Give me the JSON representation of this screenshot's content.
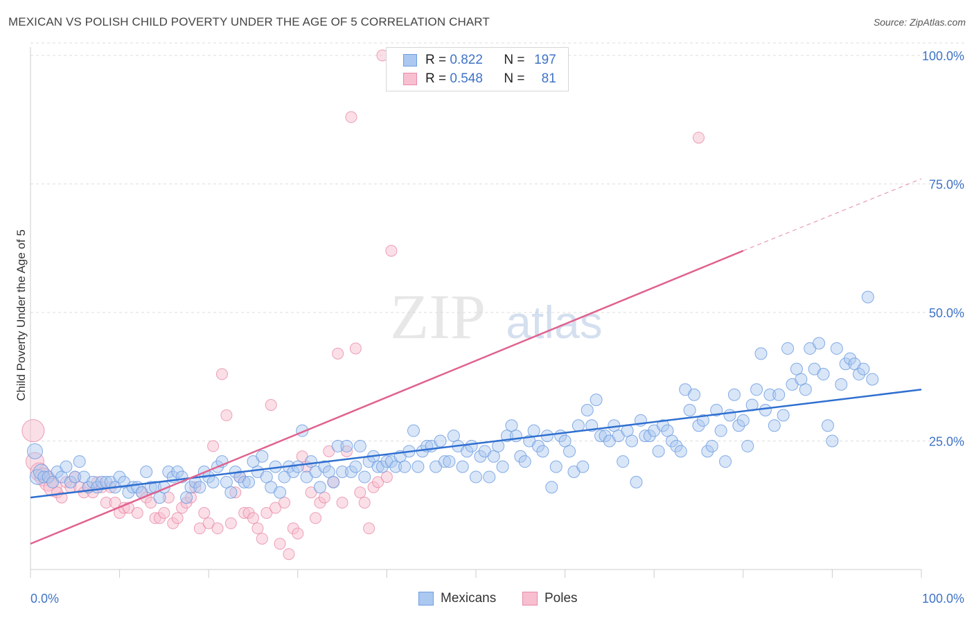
{
  "title": "MEXICAN VS POLISH CHILD POVERTY UNDER THE AGE OF 5 CORRELATION CHART",
  "source": "Source: ZipAtlas.com",
  "watermark": {
    "zip": "ZIP",
    "atlas": "atlas"
  },
  "legend": {
    "rows": [
      {
        "r_label": "R =",
        "r_value": "0.822",
        "n_label": "N =",
        "n_value": "197",
        "color": "#aac8f0",
        "border": "#6f9ee0"
      },
      {
        "r_label": "R =",
        "r_value": "0.548",
        "n_label": "N =",
        "n_value": "81",
        "color": "#f7bfd0",
        "border": "#e88aa8"
      }
    ]
  },
  "bottom_legend": {
    "mexicans": "Mexicans",
    "poles": "Poles"
  },
  "chart_data": {
    "type": "scatter",
    "title": "MEXICAN VS POLISH CHILD POVERTY UNDER THE AGE OF 5 CORRELATION CHART",
    "xlabel": "",
    "ylabel": "Child Poverty Under the Age of 5",
    "xlim": [
      0,
      100
    ],
    "ylim": [
      0,
      100
    ],
    "x_ticks": [
      "0.0%",
      "100.0%"
    ],
    "y_ticks": [
      "25.0%",
      "50.0%",
      "75.0%",
      "100.0%"
    ],
    "y_tick_values": [
      25,
      50,
      75,
      100
    ],
    "grid": true,
    "legend_position": "top-center",
    "series": [
      {
        "name": "Mexicans",
        "color": "#6f9ee0",
        "fill": "#aac8f0",
        "trend": {
          "x": [
            0,
            100
          ],
          "y": [
            14,
            35
          ]
        },
        "points": [
          [
            0.5,
            23
          ],
          [
            0.8,
            18
          ],
          [
            1.2,
            19
          ],
          [
            1.5,
            18
          ],
          [
            2,
            18
          ],
          [
            2.5,
            17
          ],
          [
            3,
            19
          ],
          [
            3.5,
            18
          ],
          [
            4,
            20
          ],
          [
            4.5,
            17
          ],
          [
            5,
            18
          ],
          [
            5.5,
            21
          ],
          [
            6,
            18
          ],
          [
            6.5,
            16
          ],
          [
            7,
            17
          ],
          [
            7.5,
            16
          ],
          [
            8,
            17
          ],
          [
            8.5,
            17
          ],
          [
            9,
            17
          ],
          [
            9.5,
            16
          ],
          [
            10,
            18
          ],
          [
            10.5,
            17
          ],
          [
            11,
            15
          ],
          [
            11.5,
            16
          ],
          [
            12,
            16
          ],
          [
            12.5,
            15
          ],
          [
            13,
            19
          ],
          [
            13.5,
            16
          ],
          [
            14,
            16
          ],
          [
            14.5,
            14
          ],
          [
            15,
            16
          ],
          [
            15.5,
            19
          ],
          [
            16,
            18
          ],
          [
            16.5,
            19
          ],
          [
            17,
            18
          ],
          [
            17.5,
            14
          ],
          [
            18,
            16
          ],
          [
            18.5,
            17
          ],
          [
            19,
            16
          ],
          [
            19.5,
            19
          ],
          [
            20,
            18
          ],
          [
            20.5,
            17
          ],
          [
            21,
            20
          ],
          [
            21.5,
            21
          ],
          [
            22,
            17
          ],
          [
            22.5,
            15
          ],
          [
            23,
            19
          ],
          [
            23.5,
            18
          ],
          [
            24,
            17
          ],
          [
            24.5,
            17
          ],
          [
            25,
            21
          ],
          [
            25.5,
            19
          ],
          [
            26,
            22
          ],
          [
            26.5,
            18
          ],
          [
            27,
            16
          ],
          [
            27.5,
            20
          ],
          [
            28,
            15
          ],
          [
            28.5,
            18
          ],
          [
            29,
            20
          ],
          [
            29.5,
            19
          ],
          [
            30,
            20
          ],
          [
            30.5,
            27
          ],
          [
            31,
            18
          ],
          [
            31.5,
            21
          ],
          [
            32,
            19
          ],
          [
            32.5,
            16
          ],
          [
            33,
            20
          ],
          [
            33.5,
            19
          ],
          [
            34,
            17
          ],
          [
            34.5,
            24
          ],
          [
            35,
            19
          ],
          [
            35.5,
            24
          ],
          [
            36,
            19
          ],
          [
            36.5,
            20
          ],
          [
            37,
            24
          ],
          [
            37.5,
            18
          ],
          [
            38,
            21
          ],
          [
            38.5,
            22
          ],
          [
            39,
            20
          ],
          [
            39.5,
            20
          ],
          [
            40,
            21
          ],
          [
            40.5,
            21
          ],
          [
            41,
            20
          ],
          [
            41.5,
            22
          ],
          [
            42,
            20
          ],
          [
            42.5,
            23
          ],
          [
            43,
            27
          ],
          [
            43.5,
            20
          ],
          [
            44,
            23
          ],
          [
            44.5,
            24
          ],
          [
            45,
            24
          ],
          [
            45.5,
            20
          ],
          [
            46,
            25
          ],
          [
            46.5,
            21
          ],
          [
            47,
            21
          ],
          [
            47.5,
            26
          ],
          [
            48,
            24
          ],
          [
            48.5,
            20
          ],
          [
            49,
            23
          ],
          [
            49.5,
            24
          ],
          [
            50,
            18
          ],
          [
            50.5,
            22
          ],
          [
            51,
            23
          ],
          [
            51.5,
            18
          ],
          [
            52,
            22
          ],
          [
            52.5,
            24
          ],
          [
            53,
            20
          ],
          [
            53.5,
            26
          ],
          [
            54,
            28
          ],
          [
            54.5,
            26
          ],
          [
            55,
            22
          ],
          [
            55.5,
            21
          ],
          [
            56,
            25
          ],
          [
            56.5,
            27
          ],
          [
            57,
            24
          ],
          [
            57.5,
            23
          ],
          [
            58,
            26
          ],
          [
            58.5,
            16
          ],
          [
            59,
            20
          ],
          [
            59.5,
            26
          ],
          [
            60,
            25
          ],
          [
            60.5,
            23
          ],
          [
            61,
            19
          ],
          [
            61.5,
            28
          ],
          [
            62,
            20
          ],
          [
            62.5,
            31
          ],
          [
            63,
            28
          ],
          [
            63.5,
            33
          ],
          [
            64,
            26
          ],
          [
            64.5,
            26
          ],
          [
            65,
            25
          ],
          [
            65.5,
            28
          ],
          [
            66,
            26
          ],
          [
            66.5,
            21
          ],
          [
            67,
            27
          ],
          [
            67.5,
            25
          ],
          [
            68,
            17
          ],
          [
            68.5,
            29
          ],
          [
            69,
            26
          ],
          [
            69.5,
            26
          ],
          [
            70,
            27
          ],
          [
            70.5,
            23
          ],
          [
            71,
            28
          ],
          [
            71.5,
            27
          ],
          [
            72,
            25
          ],
          [
            72.5,
            24
          ],
          [
            73,
            23
          ],
          [
            73.5,
            35
          ],
          [
            74,
            31
          ],
          [
            74.5,
            34
          ],
          [
            75,
            28
          ],
          [
            75.5,
            29
          ],
          [
            76,
            23
          ],
          [
            76.5,
            24
          ],
          [
            77,
            31
          ],
          [
            77.5,
            27
          ],
          [
            78,
            21
          ],
          [
            78.5,
            30
          ],
          [
            79,
            34
          ],
          [
            79.5,
            28
          ],
          [
            80,
            29
          ],
          [
            80.5,
            24
          ],
          [
            81,
            32
          ],
          [
            81.5,
            35
          ],
          [
            82,
            42
          ],
          [
            82.5,
            31
          ],
          [
            83,
            34
          ],
          [
            83.5,
            28
          ],
          [
            84,
            34
          ],
          [
            84.5,
            30
          ],
          [
            85,
            43
          ],
          [
            85.5,
            36
          ],
          [
            86,
            39
          ],
          [
            86.5,
            37
          ],
          [
            87,
            35
          ],
          [
            87.5,
            43
          ],
          [
            88,
            39
          ],
          [
            88.5,
            44
          ],
          [
            89,
            38
          ],
          [
            89.5,
            28
          ],
          [
            90,
            25
          ],
          [
            90.5,
            43
          ],
          [
            91,
            36
          ],
          [
            91.5,
            40
          ],
          [
            92,
            41
          ],
          [
            92.5,
            40
          ],
          [
            93,
            38
          ],
          [
            93.5,
            39
          ],
          [
            94,
            53
          ],
          [
            94.5,
            37
          ]
        ]
      },
      {
        "name": "Poles",
        "color": "#e88aa8",
        "fill": "#f7bfd0",
        "trend": {
          "x": [
            0,
            80
          ],
          "y": [
            5,
            62
          ]
        },
        "trend_dashed": {
          "x": [
            80,
            100
          ],
          "y": [
            62,
            76
          ]
        },
        "points": [
          [
            0.3,
            27
          ],
          [
            0.5,
            21
          ],
          [
            1,
            19
          ],
          [
            1.5,
            18
          ],
          [
            2,
            17
          ],
          [
            2.5,
            16
          ],
          [
            3,
            15
          ],
          [
            3.5,
            14
          ],
          [
            4,
            17
          ],
          [
            4.5,
            16
          ],
          [
            5,
            18
          ],
          [
            5.5,
            16
          ],
          [
            6,
            15
          ],
          [
            6.5,
            16
          ],
          [
            7,
            15
          ],
          [
            7.5,
            17
          ],
          [
            8,
            16
          ],
          [
            8.5,
            13
          ],
          [
            9,
            16
          ],
          [
            9.5,
            13
          ],
          [
            10,
            11
          ],
          [
            10.5,
            12
          ],
          [
            11,
            12
          ],
          [
            12,
            11
          ],
          [
            12.5,
            15
          ],
          [
            13,
            14
          ],
          [
            13.5,
            13
          ],
          [
            14,
            10
          ],
          [
            14.5,
            10
          ],
          [
            15,
            11
          ],
          [
            15.5,
            14
          ],
          [
            16,
            9
          ],
          [
            16.5,
            10
          ],
          [
            17,
            12
          ],
          [
            17.5,
            13
          ],
          [
            18,
            14
          ],
          [
            18.5,
            16
          ],
          [
            19,
            8
          ],
          [
            19.5,
            11
          ],
          [
            20,
            9
          ],
          [
            20.5,
            24
          ],
          [
            21,
            8
          ],
          [
            21.5,
            38
          ],
          [
            22,
            30
          ],
          [
            22.5,
            9
          ],
          [
            23,
            15
          ],
          [
            23.5,
            18
          ],
          [
            24,
            11
          ],
          [
            24.5,
            11
          ],
          [
            25,
            10
          ],
          [
            25.5,
            8
          ],
          [
            26,
            6
          ],
          [
            26.5,
            11
          ],
          [
            27,
            32
          ],
          [
            27.5,
            12
          ],
          [
            28,
            5
          ],
          [
            28.5,
            13
          ],
          [
            29,
            3
          ],
          [
            29.5,
            8
          ],
          [
            30,
            7
          ],
          [
            30.5,
            22
          ],
          [
            31,
            20
          ],
          [
            31.5,
            15
          ],
          [
            32,
            10
          ],
          [
            32.5,
            13
          ],
          [
            33,
            14
          ],
          [
            33.5,
            23
          ],
          [
            34,
            17
          ],
          [
            34.5,
            42
          ],
          [
            35,
            13
          ],
          [
            35.5,
            23
          ],
          [
            36,
            88
          ],
          [
            36.5,
            43
          ],
          [
            37,
            15
          ],
          [
            37.5,
            13
          ],
          [
            38,
            8
          ],
          [
            38.5,
            16
          ],
          [
            39,
            17
          ],
          [
            39.5,
            100
          ],
          [
            40,
            18
          ],
          [
            40.5,
            62
          ],
          [
            75,
            84
          ]
        ]
      }
    ]
  }
}
